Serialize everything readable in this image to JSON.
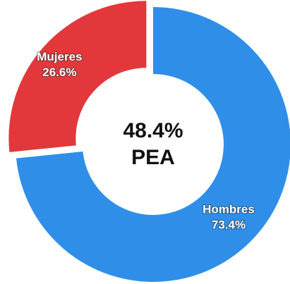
{
  "chart_data": {
    "type": "donut",
    "categories": [
      "Mujeres",
      "Hombres"
    ],
    "values": [
      26.6,
      73.4
    ],
    "value_labels": [
      "26.6%",
      "73.4%"
    ],
    "colors": [
      "#e3383b",
      "#2f8fe8"
    ],
    "exploded": [
      true,
      false
    ],
    "annotations": [
      "48.4%",
      "PEA"
    ]
  }
}
